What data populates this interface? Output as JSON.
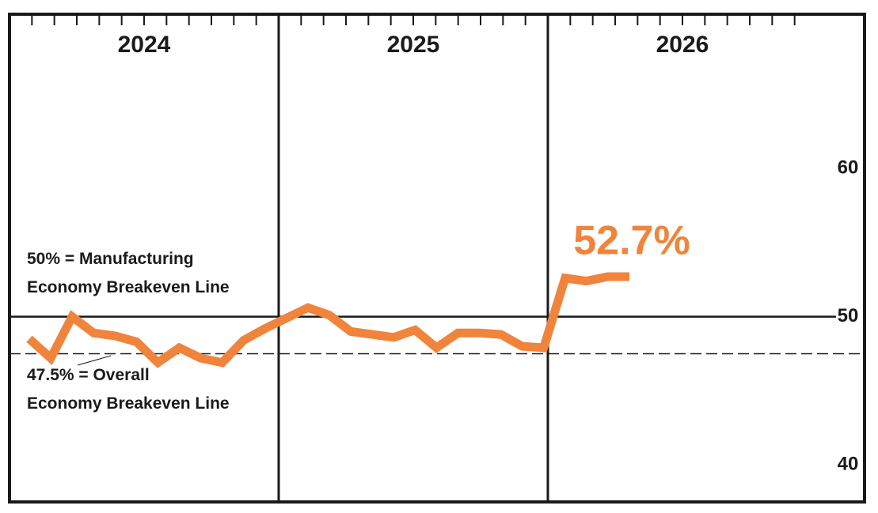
{
  "chart_data": {
    "type": "line",
    "period_labels": [
      "2024",
      "2025",
      "2026"
    ],
    "categories": [
      null,
      null,
      null,
      null,
      null,
      null,
      null,
      null,
      null,
      null,
      null,
      null,
      null,
      null,
      null,
      null,
      null,
      null,
      null,
      null,
      null,
      null,
      null,
      null,
      null,
      null,
      null,
      null,
      null
    ],
    "series": [
      {
        "color": "#f0843c",
        "values": [
          48.5,
          47.2,
          50.0,
          48.9,
          48.7,
          48.3,
          46.9,
          47.9,
          47.2,
          46.9,
          48.4,
          49.2,
          49.9,
          50.6,
          50.1,
          49.0,
          48.8,
          48.6,
          49.1,
          47.9,
          48.9,
          48.9,
          48.8,
          48.0,
          47.9,
          52.6,
          52.4,
          52.7,
          52.7
        ]
      }
    ],
    "ylim": [
      37.5,
      70.4
    ],
    "yticks": [
      40,
      50,
      60
    ],
    "reference_lines": [
      {
        "value": 50,
        "style": "solid",
        "label": [
          "50% = Manufacturing",
          "Economy Breakeven Line"
        ]
      },
      {
        "value": 47.5,
        "style": "dashed",
        "label": [
          "47.5% = Overall",
          "Economy Breakeven Line"
        ]
      }
    ],
    "annotation": "52.7%"
  }
}
